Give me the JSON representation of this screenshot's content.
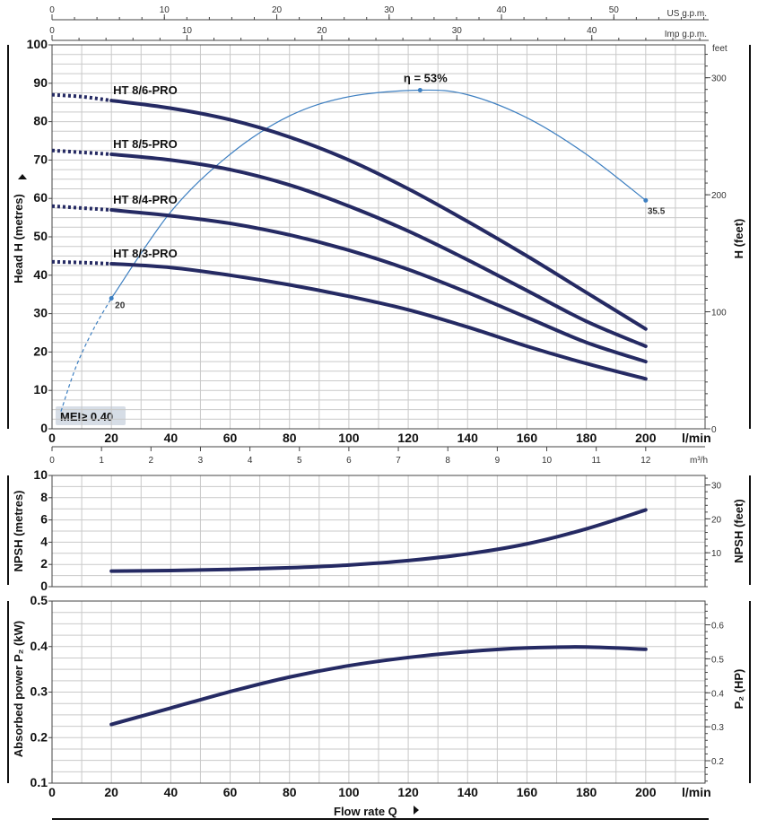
{
  "chart_data": [
    {
      "id": "head",
      "type": "line",
      "ylabel": "Head  H  (metres)",
      "y2label": "H (feet)",
      "y2unit": "feet",
      "xunit": "l/min",
      "xlim": [
        0,
        220
      ],
      "ylim": [
        0,
        100
      ],
      "y2lim": [
        0,
        328.1
      ],
      "xticks": [
        "0",
        "20",
        "40",
        "60",
        "80",
        "100",
        "120",
        "140",
        "160",
        "180",
        "200"
      ],
      "yticks": [
        "0",
        "10",
        "20",
        "30",
        "40",
        "50",
        "60",
        "70",
        "80",
        "90",
        "100"
      ],
      "y2ticks": [
        "0",
        "100",
        "200",
        "300"
      ],
      "top_axes": [
        {
          "unit": "US g.p.m.",
          "ticks": [
            "0",
            "10",
            "20",
            "30",
            "40",
            "50"
          ]
        },
        {
          "unit": "Imp g.p.m.",
          "ticks": [
            "0",
            "10",
            "20",
            "30",
            "40"
          ]
        }
      ],
      "bottom_axis2": {
        "unit": "m³/h",
        "ticks": [
          "0",
          "1",
          "2",
          "3",
          "4",
          "5",
          "6",
          "7",
          "8",
          "9",
          "10",
          "11",
          "12"
        ]
      },
      "series": [
        {
          "name": "HT 8/6-PRO",
          "x": [
            20,
            40,
            60,
            80,
            100,
            120,
            140,
            160,
            180,
            200
          ],
          "y": [
            85.5,
            83.5,
            80.5,
            76,
            70,
            62.5,
            54,
            45,
            35.5,
            26
          ],
          "ext_x": [
            0,
            10,
            20
          ],
          "ext_y": [
            87,
            86.5,
            85.5
          ]
        },
        {
          "name": "HT 8/5-PRO",
          "x": [
            20,
            40,
            60,
            80,
            100,
            120,
            140,
            160,
            180,
            200
          ],
          "y": [
            71.5,
            70,
            67.5,
            63.5,
            58,
            51.5,
            44,
            36,
            28,
            21.5
          ],
          "ext_x": [
            0,
            10,
            20
          ],
          "ext_y": [
            72.5,
            72,
            71.5
          ]
        },
        {
          "name": "HT 8/4-PRO",
          "x": [
            20,
            40,
            60,
            80,
            100,
            120,
            140,
            160,
            180,
            200
          ],
          "y": [
            57,
            55.5,
            53.5,
            50.5,
            46.5,
            41.5,
            35.5,
            29,
            22.5,
            17.5
          ],
          "ext_x": [
            0,
            10,
            20
          ],
          "ext_y": [
            58,
            57.5,
            57
          ]
        },
        {
          "name": "HT 8/3-PRO",
          "x": [
            20,
            40,
            60,
            80,
            100,
            120,
            140,
            160,
            180,
            200
          ],
          "y": [
            43,
            42,
            40,
            37.5,
            34.5,
            31,
            26.5,
            21.5,
            17,
            13
          ],
          "ext_x": [
            0,
            10,
            20
          ],
          "ext_y": [
            43.5,
            43.3,
            43
          ]
        }
      ],
      "efficiency": {
        "label": "η = 53%",
        "start_label": "20",
        "end_label": "35.5",
        "dashed_x": [
          3,
          8,
          14,
          20
        ],
        "dashed_y": [
          4.5,
          16,
          26,
          34
        ],
        "solid_x": [
          20,
          40,
          60,
          80,
          100,
          124,
          140,
          160,
          180,
          200
        ],
        "solid_y": [
          34,
          56.5,
          71.5,
          81.5,
          86.5,
          88.2,
          87,
          81,
          71.5,
          59.5
        ],
        "peak_x": 124,
        "peak_y": 88.2
      },
      "badge": "MEI≥ 0.40"
    },
    {
      "id": "npsh",
      "type": "line",
      "ylabel": "NPSH (metres)",
      "y2label": "NPSH (feet)",
      "xlim": [
        0,
        220
      ],
      "ylim": [
        0,
        10
      ],
      "y2lim": [
        0,
        32.81
      ],
      "yticks": [
        "0",
        "2",
        "4",
        "6",
        "8",
        "10"
      ],
      "y2ticks": [
        "10",
        "20",
        "30"
      ],
      "series": [
        {
          "name": "NPSH",
          "x": [
            20,
            40,
            60,
            80,
            100,
            120,
            140,
            160,
            180,
            200
          ],
          "y": [
            1.4,
            1.45,
            1.55,
            1.7,
            1.95,
            2.35,
            2.95,
            3.85,
            5.2,
            6.9
          ]
        }
      ]
    },
    {
      "id": "power",
      "type": "line",
      "ylabel": "Absorbed power  P₂  (kW)",
      "y2label": "P₂ (HP)",
      "xlabel": "Flow rate  Q",
      "xunit": "l/min",
      "xlim": [
        0,
        220
      ],
      "ylim": [
        0.1,
        0.5
      ],
      "y2lim": [
        0.134,
        0.67
      ],
      "xticks": [
        "0",
        "20",
        "40",
        "60",
        "80",
        "100",
        "120",
        "140",
        "160",
        "180",
        "200"
      ],
      "yticks": [
        "0.1",
        "0.2",
        "0.3",
        "0.4",
        "0.5"
      ],
      "y2ticks": [
        "0.2",
        "0.3",
        "0.4",
        "0.5",
        "0.6"
      ],
      "series": [
        {
          "name": "P2",
          "x": [
            20,
            40,
            60,
            80,
            100,
            120,
            140,
            160,
            180,
            200
          ],
          "y": [
            0.229,
            0.265,
            0.301,
            0.333,
            0.358,
            0.376,
            0.389,
            0.397,
            0.399,
            0.394
          ]
        }
      ]
    }
  ]
}
